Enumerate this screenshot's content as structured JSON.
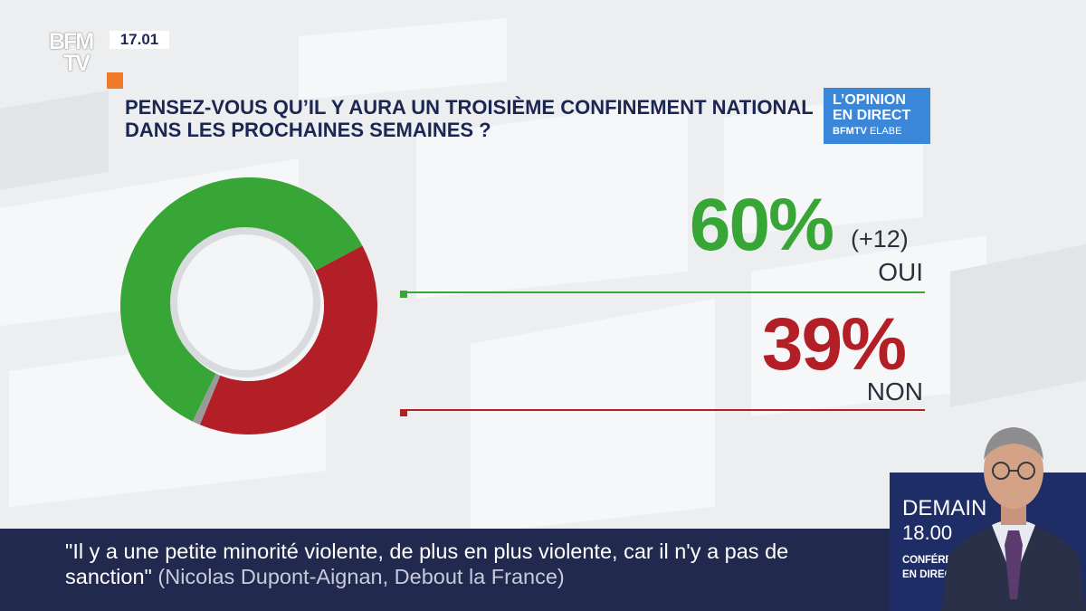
{
  "channel": {
    "logo_line1": "BFM",
    "logo_line2": "TV",
    "time": "17.01"
  },
  "question": "PENSEZ-VOUS QU’IL Y AURA UN TROISIÈME CONFINEMENT NATIONAL DANS LES PROCHAINES SEMAINES ?",
  "badge": {
    "line1": "L’OPINION",
    "line2": "EN DIRECT",
    "line3_brand": "BFMTV",
    "line3_partner": "ELABE"
  },
  "chart_data": {
    "type": "pie",
    "title": "PENSEZ-VOUS QU’IL Y AURA UN TROISIÈME CONFINEMENT NATIONAL DANS LES PROCHAINES SEMAINES ?",
    "slices": [
      {
        "label": "OUI",
        "value": 60,
        "display": "60%",
        "change": "(+12)",
        "color": "#37a637"
      },
      {
        "label": "NON",
        "value": 39,
        "display": "39%",
        "color": "#b31f26"
      },
      {
        "label": "",
        "value": 1,
        "display": "",
        "color": "#9a9a9a"
      }
    ]
  },
  "ticker": {
    "quote": "\"Il y a une petite minorité violente, de plus en plus violente, car il n'y a pas de sanction\"",
    "source": "(Nicolas Dupont-Aignan, Debout la France)"
  },
  "promo": {
    "day": "DEMAIN",
    "time": "18.00",
    "line1": "CONFÉRENCE DE JEAN CASTEX",
    "line2": "EN DIRECT SUR BFMTV"
  },
  "colors": {
    "navy": "#22294e",
    "green": "#37a637",
    "red": "#b31f26",
    "accent_orange": "#f07a2a",
    "badge_blue": "#3a86d9"
  }
}
